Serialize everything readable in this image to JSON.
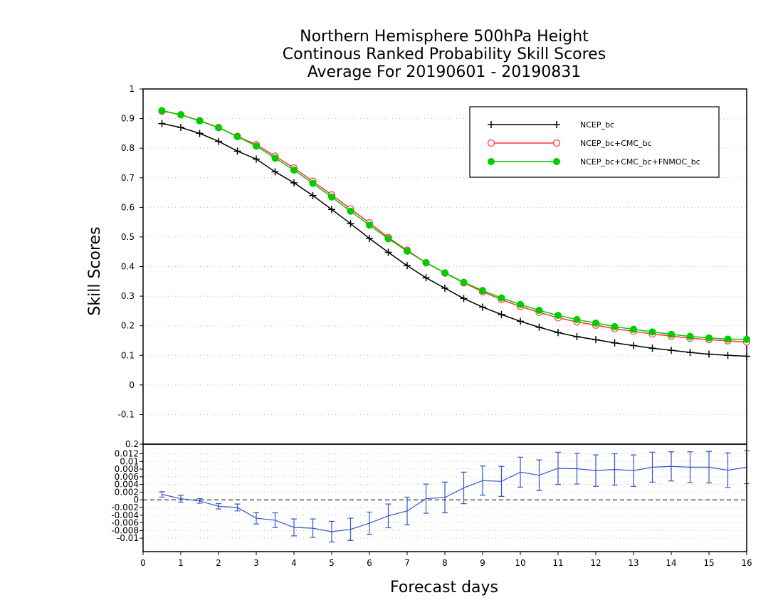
{
  "chart_data": [
    {
      "type": "line",
      "title": [
        "Northern Hemisphere 500hPa Height",
        "Continous Ranked Probability Skill Scores",
        "Average For 20190601 - 20190831"
      ],
      "ylabel": "Skill Scores",
      "ylim": [
        -0.2,
        1.0
      ],
      "yticks": [
        "1",
        "0.9",
        "0.8",
        "0.7",
        "0.6",
        "0.5",
        "0.4",
        "0.3",
        "0.2",
        "0.1",
        "0",
        "-0.1",
        "-0.2"
      ],
      "grid": true,
      "legend_position": "top-right",
      "x": [
        0.5,
        1,
        1.5,
        2,
        2.5,
        3,
        3.5,
        4,
        4.5,
        5,
        5.5,
        6,
        6.5,
        7,
        7.5,
        8,
        8.5,
        9,
        9.5,
        10,
        10.5,
        11,
        11.5,
        12,
        12.5,
        13,
        13.5,
        14,
        14.5,
        15,
        15.5,
        16
      ],
      "series": [
        {
          "name": "NCEP_bc",
          "color": "#000000",
          "marker": "plus",
          "values": [
            0.883,
            0.87,
            0.85,
            0.823,
            0.79,
            0.763,
            0.72,
            0.683,
            0.64,
            0.593,
            0.545,
            0.495,
            0.448,
            0.403,
            0.362,
            0.327,
            0.292,
            0.263,
            0.238,
            0.215,
            0.195,
            0.177,
            0.163,
            0.153,
            0.142,
            0.133,
            0.124,
            0.117,
            0.11,
            0.104,
            0.1,
            0.097
          ]
        },
        {
          "name": "NCEP_bc+CMC_bc",
          "color": "#ff3333",
          "marker": "open-circle",
          "values": [
            0.925,
            0.913,
            0.893,
            0.87,
            0.84,
            0.812,
            0.773,
            0.733,
            0.688,
            0.642,
            0.595,
            0.548,
            0.498,
            0.455,
            0.413,
            0.378,
            0.345,
            0.315,
            0.288,
            0.265,
            0.245,
            0.227,
            0.213,
            0.202,
            0.19,
            0.181,
            0.172,
            0.165,
            0.158,
            0.153,
            0.149,
            0.145
          ]
        },
        {
          "name": "NCEP_bc+CMC_bc+FNMOC_bc",
          "color": "#00cc00",
          "marker": "filled-circle",
          "values": [
            0.927,
            0.913,
            0.892,
            0.869,
            0.839,
            0.807,
            0.766,
            0.726,
            0.681,
            0.635,
            0.587,
            0.54,
            0.494,
            0.452,
            0.413,
            0.379,
            0.347,
            0.319,
            0.294,
            0.272,
            0.252,
            0.235,
            0.221,
            0.209,
            0.197,
            0.188,
            0.179,
            0.171,
            0.164,
            0.159,
            0.155,
            0.154
          ]
        }
      ]
    },
    {
      "type": "line",
      "xlabel": "Forecast days",
      "xlim": [
        0,
        16
      ],
      "xticks": [
        "0",
        "1",
        "2",
        "3",
        "4",
        "5",
        "6",
        "7",
        "8",
        "9",
        "10",
        "11",
        "12",
        "13",
        "14",
        "15",
        "16"
      ],
      "ylim": [
        -0.0135,
        0.0145
      ],
      "yticks": [
        "0.012",
        "0.01",
        "0.008",
        "0.006",
        "0.004",
        "0.002",
        "0",
        "-0.002",
        "-0.004",
        "-0.006",
        "-0.008",
        "-0.01"
      ],
      "top_label": "0.2",
      "grid": true,
      "reference_line": 0,
      "series": [
        {
          "name": "",
          "color": "#3355cc",
          "x": [
            0.5,
            1,
            1.5,
            2,
            2.5,
            3,
            3.5,
            4,
            4.5,
            5,
            5.5,
            6,
            6.5,
            7,
            7.5,
            8,
            8.5,
            9,
            9.5,
            10,
            10.5,
            11,
            11.5,
            12,
            12.5,
            13,
            13.5,
            14,
            14.5,
            15,
            15.5,
            16
          ],
          "values": [
            0.0014,
            0.0003,
            -0.0003,
            -0.0017,
            -0.002,
            -0.0048,
            -0.0053,
            -0.0072,
            -0.0074,
            -0.0083,
            -0.0077,
            -0.0061,
            -0.0042,
            -0.0029,
            0.0003,
            0.0006,
            0.0031,
            0.005,
            0.0048,
            0.0072,
            0.0064,
            0.0082,
            0.0081,
            0.0076,
            0.0079,
            0.0076,
            0.0085,
            0.0087,
            0.0085,
            0.0085,
            0.0077,
            0.0085
          ],
          "errors": [
            0.0007,
            0.0009,
            0.0006,
            0.0007,
            0.0009,
            0.0015,
            0.0019,
            0.0022,
            0.0024,
            0.0027,
            0.0029,
            0.0029,
            0.0031,
            0.0036,
            0.0038,
            0.004,
            0.0041,
            0.0038,
            0.0039,
            0.0039,
            0.004,
            0.0042,
            0.004,
            0.0041,
            0.0041,
            0.0041,
            0.0039,
            0.0038,
            0.004,
            0.0041,
            0.0045,
            0.0043
          ]
        }
      ]
    }
  ]
}
